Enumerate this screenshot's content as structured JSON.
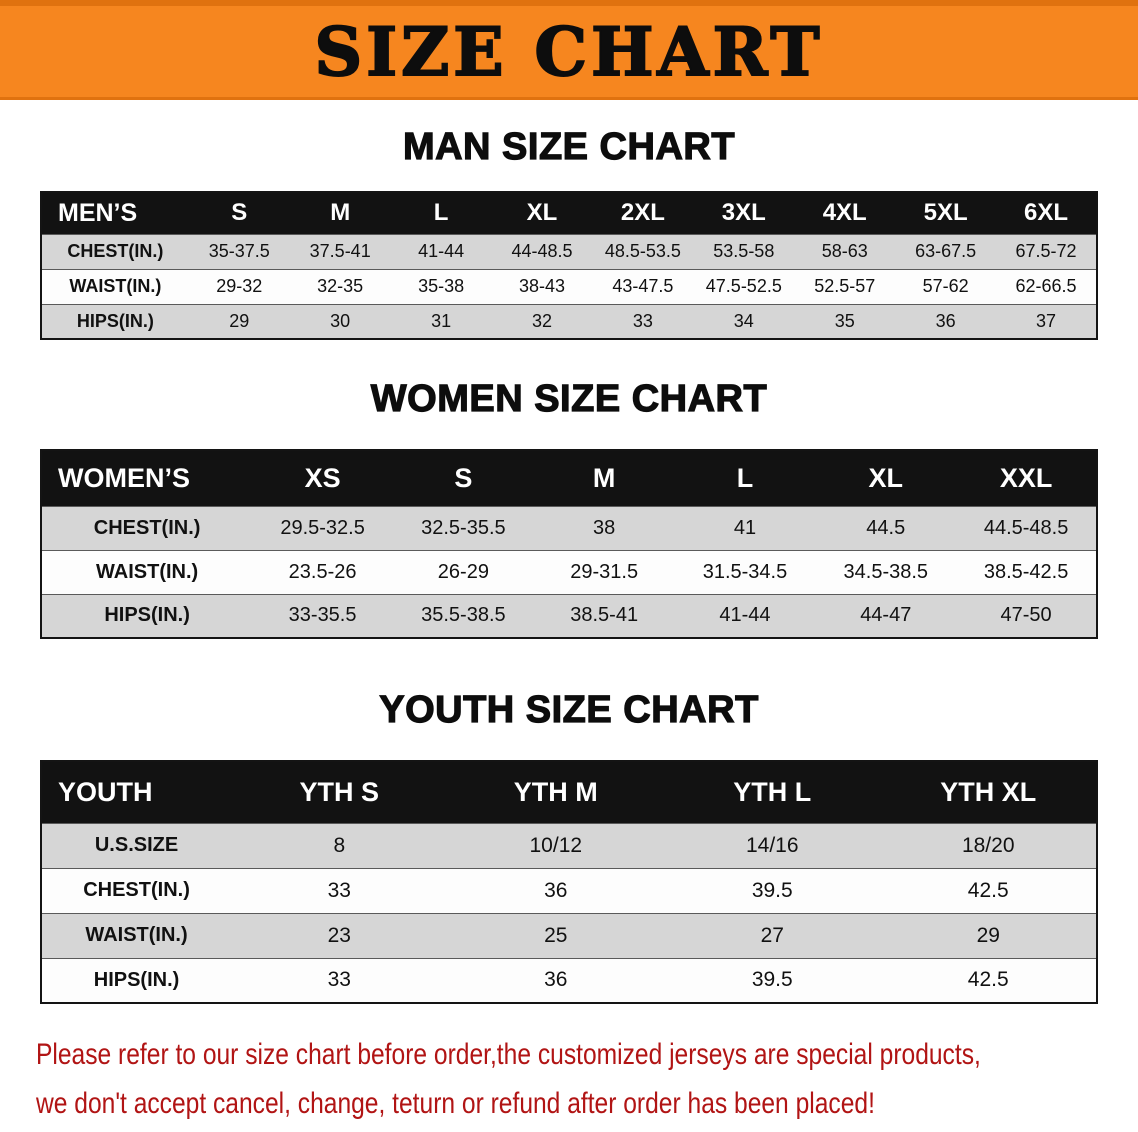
{
  "banner": {
    "title": "SIZE CHART"
  },
  "men": {
    "heading": "MAN SIZE CHART",
    "table": {
      "header": [
        "MEN’S",
        "S",
        "M",
        "L",
        "XL",
        "2XL",
        "3XL",
        "4XL",
        "5XL",
        "6XL"
      ],
      "rows": [
        [
          "CHEST(IN.)",
          "35-37.5",
          "37.5-41",
          "41-44",
          "44-48.5",
          "48.5-53.5",
          "53.5-58",
          "58-63",
          "63-67.5",
          "67.5-72"
        ],
        [
          "WAIST(IN.)",
          "29-32",
          "32-35",
          "35-38",
          "38-43",
          "43-47.5",
          "47.5-52.5",
          "52.5-57",
          "57-62",
          "62-66.5"
        ],
        [
          "HIPS(IN.)",
          "29",
          "30",
          "31",
          "32",
          "33",
          "34",
          "35",
          "36",
          "37"
        ]
      ]
    }
  },
  "women": {
    "heading": "WOMEN SIZE CHART",
    "table": {
      "header": [
        "WOMEN’S",
        "XS",
        "S",
        "M",
        "L",
        "XL",
        "XXL"
      ],
      "rows": [
        [
          "CHEST(IN.)",
          "29.5-32.5",
          "32.5-35.5",
          "38",
          "41",
          "44.5",
          "44.5-48.5"
        ],
        [
          "WAIST(IN.)",
          "23.5-26",
          "26-29",
          "29-31.5",
          "31.5-34.5",
          "34.5-38.5",
          "38.5-42.5"
        ],
        [
          "HIPS(IN.)",
          "33-35.5",
          "35.5-38.5",
          "38.5-41",
          "41-44",
          "44-47",
          "47-50"
        ]
      ]
    }
  },
  "youth": {
    "heading": "YOUTH SIZE CHART",
    "table": {
      "header": [
        "YOUTH",
        "YTH S",
        "YTH M",
        "YTH L",
        "YTH XL"
      ],
      "rows": [
        [
          "U.S.SIZE",
          "8",
          "10/12",
          "14/16",
          "18/20"
        ],
        [
          "CHEST(IN.)",
          "33",
          "36",
          "39.5",
          "42.5"
        ],
        [
          "WAIST(IN.)",
          "23",
          "25",
          "27",
          "29"
        ],
        [
          "HIPS(IN.)",
          "33",
          "36",
          "39.5",
          "42.5"
        ]
      ]
    }
  },
  "disclaimer": {
    "line1": "Please refer to our size chart before order,the customized jerseys are special products,",
    "line2": "we don't accept cancel, change, teturn or refund after order has been placed!"
  },
  "colors": {
    "banner_bg": "#f6861f",
    "banner_edge": "#e0720f",
    "table_header_bg": "#121212",
    "row_alt_bg": "#d6d6d6",
    "disclaimer_text": "#b11414"
  }
}
